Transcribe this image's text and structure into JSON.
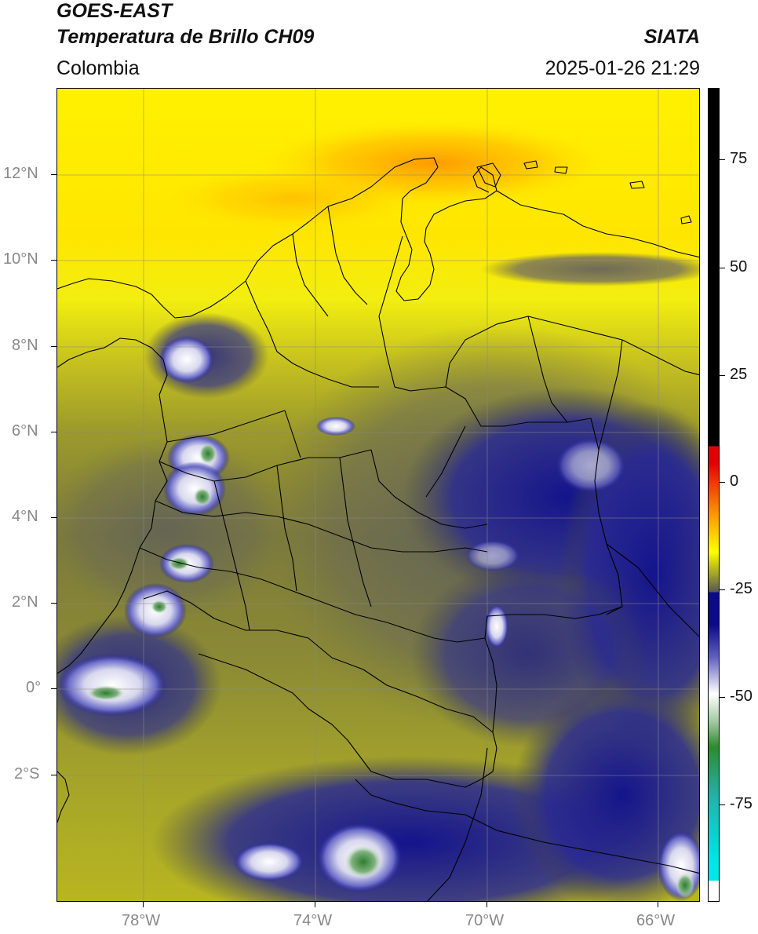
{
  "header": {
    "title_line1": "GOES-EAST",
    "title_line2": "Temperatura de Brillo CH09",
    "brand": "SIATA",
    "region": "Colombia",
    "timestamp": "2025-01-26 21:29"
  },
  "axes": {
    "lat_labels": [
      "12°N",
      "10°N",
      "8°N",
      "6°N",
      "4°N",
      "2°N",
      "0°",
      "2°S"
    ],
    "lon_labels": [
      "78°W",
      "74°W",
      "70°W",
      "66°W"
    ]
  },
  "colorbar": {
    "labels": [
      "75",
      "50",
      "25",
      "0",
      "-25",
      "-50",
      "-75"
    ],
    "colors": {
      "black": "#000000",
      "red": "#e00000",
      "orange": "#ff8c00",
      "yellow": "#ffff00",
      "olive": "#9a9a2a",
      "gray": "#555555",
      "navy": "#0a0a8c",
      "white": "#ffffff",
      "green": "#2e8b2e",
      "teal": "#20b2aa",
      "cyan": "#00e5e5"
    }
  },
  "map": {
    "lat_range": [
      -5,
      14
    ],
    "lon_range": [
      -80,
      -65
    ]
  }
}
